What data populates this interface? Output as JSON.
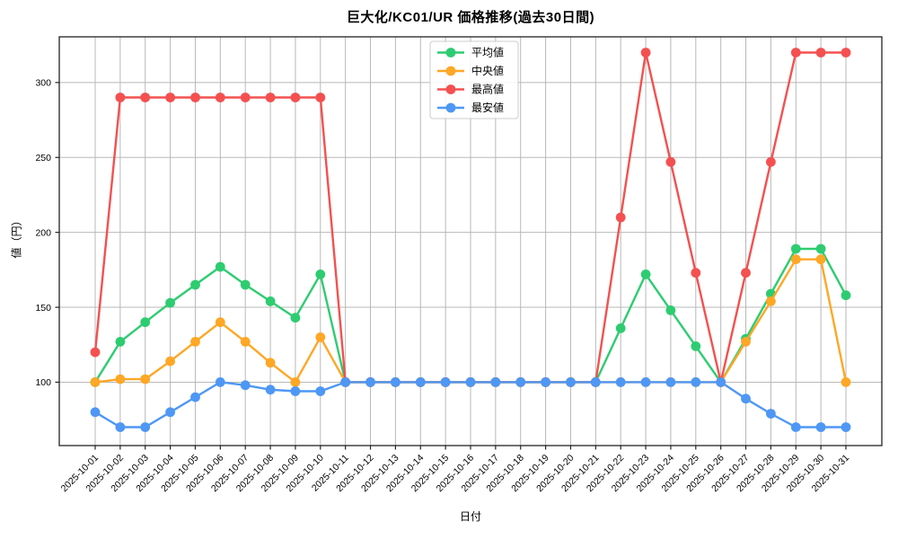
{
  "chart_data": {
    "type": "line",
    "title": "巨大化/KC01/UR 価格推移(過去30日間)",
    "xlabel": "日付",
    "ylabel": "値（円）",
    "x": [
      "2025-10-01",
      "2025-10-02",
      "2025-10-03",
      "2025-10-04",
      "2025-10-05",
      "2025-10-06",
      "2025-10-07",
      "2025-10-08",
      "2025-10-09",
      "2025-10-10",
      "2025-10-11",
      "2025-10-12",
      "2025-10-13",
      "2025-10-14",
      "2025-10-15",
      "2025-10-16",
      "2025-10-17",
      "2025-10-18",
      "2025-10-19",
      "2025-10-20",
      "2025-10-21",
      "2025-10-22",
      "2025-10-23",
      "2025-10-24",
      "2025-10-25",
      "2025-10-26",
      "2025-10-27",
      "2025-10-28",
      "2025-10-29",
      "2025-10-30",
      "2025-10-31"
    ],
    "series": [
      {
        "key": "average",
        "name": "平均値",
        "color": "#2ecc71",
        "values": [
          100,
          127,
          140,
          153,
          165,
          177,
          165,
          154,
          143,
          172,
          100,
          100,
          100,
          100,
          100,
          100,
          100,
          100,
          100,
          100,
          100,
          136,
          172,
          148,
          124,
          100,
          129,
          159,
          189,
          189,
          158
        ]
      },
      {
        "key": "median",
        "name": "中央値",
        "color": "#ffa726",
        "values": [
          100,
          102,
          102,
          114,
          127,
          140,
          127,
          113,
          100,
          130,
          100,
          100,
          100,
          100,
          100,
          100,
          100,
          100,
          100,
          100,
          100,
          100,
          100,
          100,
          100,
          100,
          127,
          154,
          182,
          182,
          100
        ]
      },
      {
        "key": "max",
        "name": "最高値",
        "color": "#f45050",
        "values": [
          120,
          290,
          290,
          290,
          290,
          290,
          290,
          290,
          290,
          290,
          100,
          100,
          100,
          100,
          100,
          100,
          100,
          100,
          100,
          100,
          100,
          210,
          320,
          247,
          173,
          100,
          173,
          247,
          320,
          320,
          320
        ]
      },
      {
        "key": "min",
        "name": "最安値",
        "color": "#4e97f5",
        "values": [
          80,
          70,
          70,
          80,
          90,
          100,
          98,
          95,
          94,
          94,
          100,
          100,
          100,
          100,
          100,
          100,
          100,
          100,
          100,
          100,
          100,
          100,
          100,
          100,
          100,
          100,
          89,
          79,
          70,
          70,
          70
        ]
      }
    ],
    "yticks": [
      100,
      150,
      200,
      250,
      300
    ],
    "ylim": [
      57.7,
      330.5
    ],
    "grid": true,
    "legend_position": "upper center",
    "colors": {
      "grid": "#b8b8b8",
      "spine": "#222222",
      "text": "#000000",
      "legend_border": "#cccccc",
      "legend_bg": "rgba(255,255,255,0.85)"
    }
  }
}
